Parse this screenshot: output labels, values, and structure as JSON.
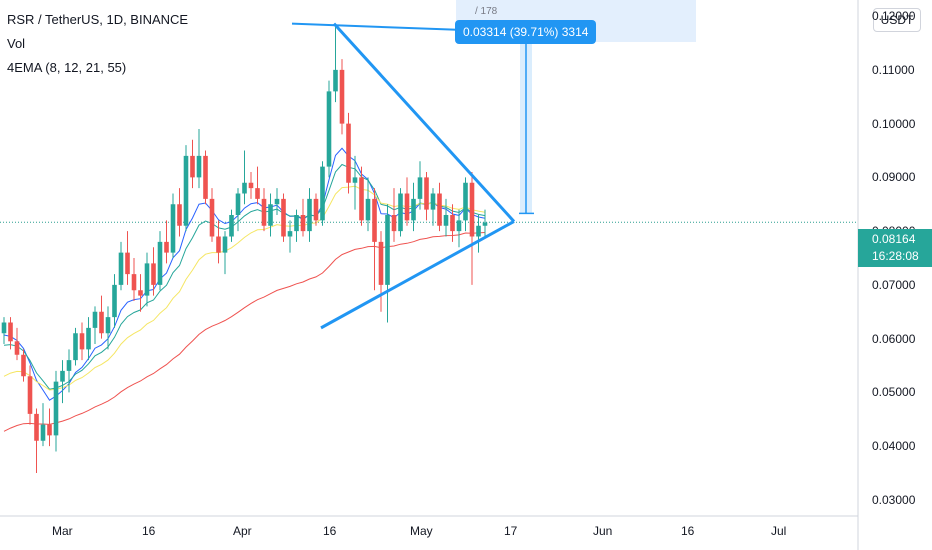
{
  "header": {
    "title": "RSR / TetherUS, 1D, BINANCE",
    "vol_label": "Vol",
    "ema_label": "4EMA (8, 12, 21, 55)",
    "currency": "USDT"
  },
  "measure": {
    "top_partial": "/   178",
    "tag": "0.03314 (39.71%) 3314"
  },
  "price_badge": {
    "price": "0.08164",
    "countdown": "16:28:08"
  },
  "colors": {
    "up": "#26a69a",
    "down": "#ef5350",
    "trendline": "#2196f3",
    "ema8": "#2962ff",
    "ema12": "#26a69a",
    "ema21": "#f5e663",
    "ema55": "#ef5350",
    "grid_dotted": "#2a9d8f"
  },
  "chart_data": {
    "type": "candlestick",
    "symbol": "RSR / TetherUS",
    "interval": "1D",
    "exchange": "BINANCE",
    "y_axis": {
      "ticks": [
        "0.12000",
        "0.11000",
        "0.10000",
        "0.09000",
        "0.08000",
        "0.07000",
        "0.06000",
        "0.05000",
        "0.04000",
        "0.03000"
      ],
      "range": [
        0.027,
        0.123
      ]
    },
    "x_axis": {
      "ticks": [
        "Mar",
        "16",
        "Apr",
        "16",
        "May",
        "17",
        "Jun",
        "16",
        "Jul"
      ]
    },
    "last_price": 0.08164,
    "candles": [
      [
        0.061,
        0.064,
        0.059,
        0.063
      ],
      [
        0.063,
        0.064,
        0.058,
        0.0595
      ],
      [
        0.0595,
        0.062,
        0.056,
        0.057
      ],
      [
        0.057,
        0.058,
        0.052,
        0.053
      ],
      [
        0.053,
        0.055,
        0.044,
        0.046
      ],
      [
        0.046,
        0.047,
        0.035,
        0.041
      ],
      [
        0.041,
        0.048,
        0.04,
        0.044
      ],
      [
        0.044,
        0.047,
        0.04,
        0.042
      ],
      [
        0.042,
        0.054,
        0.039,
        0.052
      ],
      [
        0.052,
        0.056,
        0.048,
        0.054
      ],
      [
        0.054,
        0.058,
        0.05,
        0.056
      ],
      [
        0.056,
        0.062,
        0.055,
        0.061
      ],
      [
        0.061,
        0.063,
        0.056,
        0.058
      ],
      [
        0.058,
        0.064,
        0.056,
        0.062
      ],
      [
        0.062,
        0.066,
        0.059,
        0.065
      ],
      [
        0.065,
        0.068,
        0.06,
        0.061
      ],
      [
        0.061,
        0.066,
        0.058,
        0.064
      ],
      [
        0.064,
        0.072,
        0.062,
        0.07
      ],
      [
        0.07,
        0.078,
        0.069,
        0.076
      ],
      [
        0.076,
        0.08,
        0.07,
        0.072
      ],
      [
        0.072,
        0.075,
        0.067,
        0.069
      ],
      [
        0.069,
        0.072,
        0.065,
        0.068
      ],
      [
        0.068,
        0.076,
        0.066,
        0.074
      ],
      [
        0.074,
        0.077,
        0.068,
        0.07
      ],
      [
        0.07,
        0.08,
        0.069,
        0.078
      ],
      [
        0.078,
        0.082,
        0.074,
        0.076
      ],
      [
        0.076,
        0.087,
        0.075,
        0.085
      ],
      [
        0.085,
        0.088,
        0.079,
        0.081
      ],
      [
        0.081,
        0.096,
        0.08,
        0.094
      ],
      [
        0.094,
        0.097,
        0.088,
        0.09
      ],
      [
        0.09,
        0.099,
        0.088,
        0.094
      ],
      [
        0.094,
        0.095,
        0.085,
        0.086
      ],
      [
        0.086,
        0.088,
        0.078,
        0.079
      ],
      [
        0.079,
        0.082,
        0.074,
        0.076
      ],
      [
        0.076,
        0.08,
        0.072,
        0.079
      ],
      [
        0.079,
        0.084,
        0.078,
        0.083
      ],
      [
        0.083,
        0.088,
        0.08,
        0.087
      ],
      [
        0.087,
        0.095,
        0.085,
        0.089
      ],
      [
        0.089,
        0.091,
        0.086,
        0.088
      ],
      [
        0.088,
        0.092,
        0.085,
        0.086
      ],
      [
        0.086,
        0.088,
        0.08,
        0.081
      ],
      [
        0.081,
        0.087,
        0.079,
        0.085
      ],
      [
        0.085,
        0.088,
        0.083,
        0.086
      ],
      [
        0.086,
        0.087,
        0.078,
        0.079
      ],
      [
        0.079,
        0.082,
        0.076,
        0.08
      ],
      [
        0.08,
        0.084,
        0.078,
        0.083
      ],
      [
        0.083,
        0.086,
        0.079,
        0.08
      ],
      [
        0.08,
        0.088,
        0.078,
        0.086
      ],
      [
        0.086,
        0.087,
        0.081,
        0.082
      ],
      [
        0.082,
        0.093,
        0.081,
        0.092
      ],
      [
        0.092,
        0.108,
        0.09,
        0.106
      ],
      [
        0.106,
        0.118,
        0.104,
        0.11
      ],
      [
        0.11,
        0.112,
        0.098,
        0.1
      ],
      [
        0.1,
        0.102,
        0.087,
        0.089
      ],
      [
        0.089,
        0.094,
        0.084,
        0.09
      ],
      [
        0.09,
        0.092,
        0.081,
        0.082
      ],
      [
        0.082,
        0.09,
        0.08,
        0.086
      ],
      [
        0.086,
        0.088,
        0.069,
        0.078
      ],
      [
        0.078,
        0.08,
        0.065,
        0.07
      ],
      [
        0.07,
        0.085,
        0.063,
        0.083
      ],
      [
        0.083,
        0.088,
        0.078,
        0.08
      ],
      [
        0.08,
        0.088,
        0.079,
        0.087
      ],
      [
        0.087,
        0.09,
        0.081,
        0.082
      ],
      [
        0.082,
        0.089,
        0.08,
        0.086
      ],
      [
        0.086,
        0.093,
        0.084,
        0.09
      ],
      [
        0.09,
        0.091,
        0.082,
        0.084
      ],
      [
        0.084,
        0.088,
        0.081,
        0.087
      ],
      [
        0.087,
        0.089,
        0.08,
        0.081
      ],
      [
        0.081,
        0.086,
        0.079,
        0.083
      ],
      [
        0.083,
        0.085,
        0.078,
        0.08
      ],
      [
        0.08,
        0.084,
        0.077,
        0.082
      ],
      [
        0.082,
        0.09,
        0.08,
        0.089
      ],
      [
        0.089,
        0.091,
        0.07,
        0.079
      ],
      [
        0.079,
        0.083,
        0.076,
        0.081
      ],
      [
        0.081,
        0.084,
        0.079,
        0.0816
      ]
    ]
  }
}
